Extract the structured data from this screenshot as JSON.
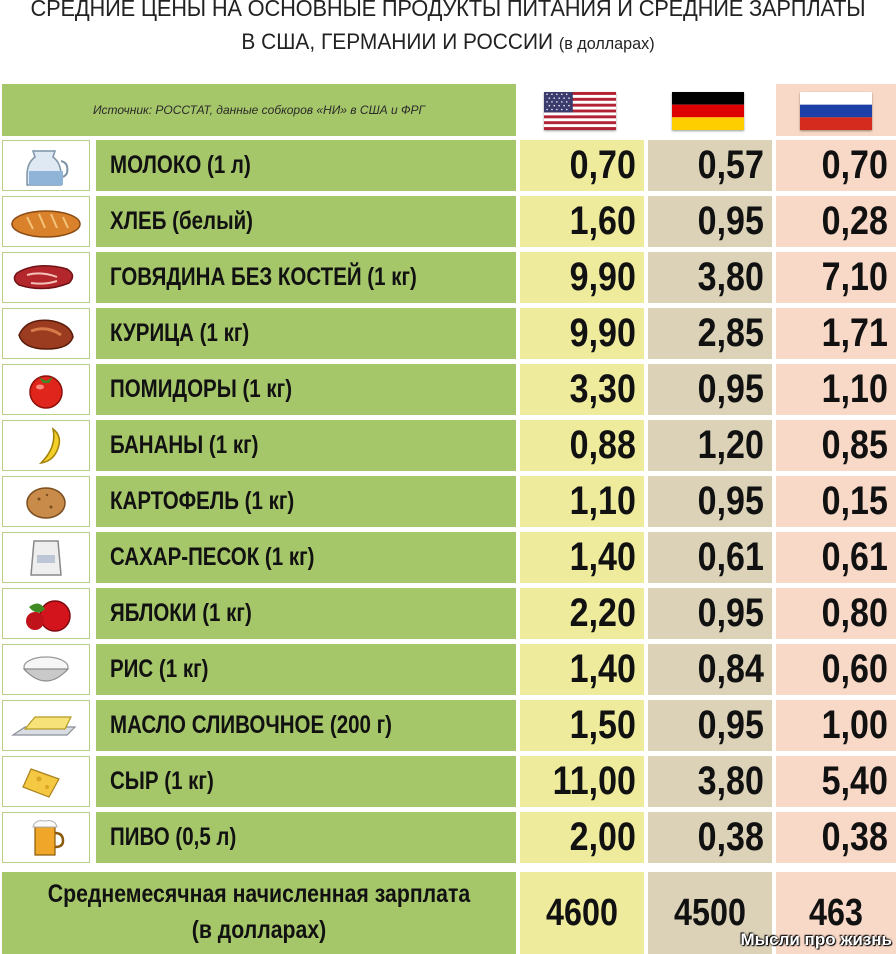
{
  "title": {
    "line1": "СРЕДНИЕ ЦЕНЫ НА ОСНОВНЫЕ ПРОДУКТЫ ПИТАНИЯ И СРЕДНИЕ ЗАРПЛАТЫ",
    "line2": "В США, ГЕРМАНИИ И РОССИИ",
    "line2_note": "(в долларах)"
  },
  "source": "Источник: РОССТАТ, данные собкоров «НИ» в США и ФРГ",
  "countries": [
    {
      "flag": "usa-flag-icon"
    },
    {
      "flag": "germany-flag-icon"
    },
    {
      "flag": "russia-flag-icon"
    }
  ],
  "rows": [
    {
      "icon": "milk-jug-icon",
      "name": "МОЛОКО (1 л)",
      "usa": "0,70",
      "germany": "0,57",
      "russia": "0,70"
    },
    {
      "icon": "bread-icon",
      "name": "ХЛЕБ (белый)",
      "usa": "1,60",
      "germany": "0,95",
      "russia": "0,28"
    },
    {
      "icon": "beef-icon",
      "name": "ГОВЯДИНА БЕЗ КОСТЕЙ (1 кг)",
      "usa": "9,90",
      "germany": "3,80",
      "russia": "7,10"
    },
    {
      "icon": "chicken-icon",
      "name": "КУРИЦА (1 кг)",
      "usa": "9,90",
      "germany": "2,85",
      "russia": "1,71"
    },
    {
      "icon": "tomato-icon",
      "name": "ПОМИДОРЫ (1 кг)",
      "usa": "3,30",
      "germany": "0,95",
      "russia": "1,10"
    },
    {
      "icon": "banana-icon",
      "name": "БАНАНЫ (1 кг)",
      "usa": "0,88",
      "germany": "1,20",
      "russia": "0,85"
    },
    {
      "icon": "potato-icon",
      "name": "КАРТОФЕЛЬ (1 кг)",
      "usa": "1,10",
      "germany": "0,95",
      "russia": "0,15"
    },
    {
      "icon": "sugar-bag-icon",
      "name": "САХАР-ПЕСОК (1 кг)",
      "usa": "1,40",
      "germany": "0,61",
      "russia": "0,61"
    },
    {
      "icon": "apple-icon",
      "name": "ЯБЛОКИ (1 кг)",
      "usa": "2,20",
      "germany": "0,95",
      "russia": "0,80"
    },
    {
      "icon": "rice-bowl-icon",
      "name": "РИС (1 кг)",
      "usa": "1,40",
      "germany": "0,84",
      "russia": "0,60"
    },
    {
      "icon": "butter-icon",
      "name": "МАСЛО СЛИВОЧНОЕ (200 г)",
      "usa": "1,50",
      "germany": "0,95",
      "russia": "1,00"
    },
    {
      "icon": "cheese-icon",
      "name": "СЫР (1 кг)",
      "usa": "11,00",
      "germany": "3,80",
      "russia": "5,40"
    },
    {
      "icon": "beer-mug-icon",
      "name": "ПИВО (0,5 л)",
      "usa": "2,00",
      "germany": "0,38",
      "russia": "0,38"
    }
  ],
  "salary": {
    "label_line1": "Среднемесячная начисленная зарплата",
    "label_line2": "(в долларах)",
    "usa": "4600",
    "germany": "4500",
    "russia": "463"
  },
  "watermark": "Мысли про жизнь",
  "colors": {
    "label_green": "#a6c66a",
    "usa_column": "#eeeb9c",
    "germany_column": "#dcd2b8",
    "russia_column": "#f8d8c6"
  }
}
